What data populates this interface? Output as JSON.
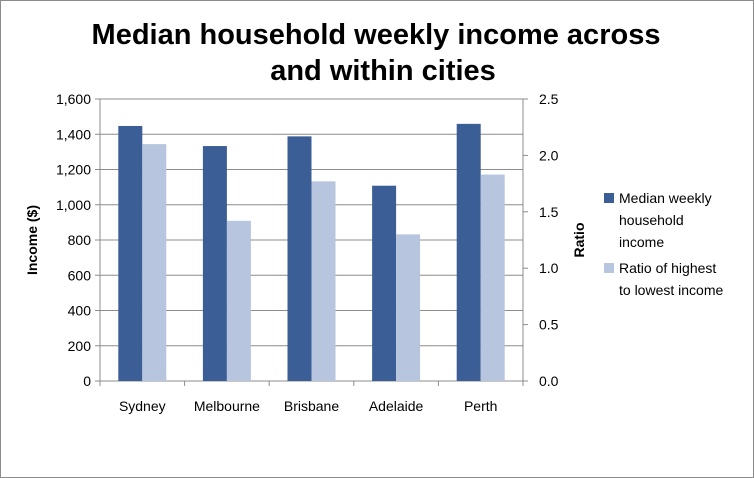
{
  "title_lines": [
    "Median household weekly income across",
    "and within cities"
  ],
  "chart_data": {
    "type": "bar",
    "title": "Median household weekly income across and within cities",
    "categories": [
      "Sydney",
      "Melbourne",
      "Brisbane",
      "Adelaide",
      "Perth"
    ],
    "series": [
      {
        "name": "Median weekly household income",
        "axis": "left",
        "color": "#3b5e96",
        "values": [
          1447,
          1333,
          1388,
          1108,
          1459
        ]
      },
      {
        "name": "Ratio of highest to lowest income",
        "axis": "right",
        "color": "#b7c5de",
        "values": [
          2.1,
          1.42,
          1.77,
          1.3,
          1.83
        ]
      }
    ],
    "y_left": {
      "label": "Income ($)",
      "range": [
        0,
        1600
      ],
      "ticks": [
        "0",
        "200",
        "400",
        "600",
        "800",
        "1,000",
        "1,200",
        "1,400",
        "1,600"
      ]
    },
    "y_right": {
      "label": "Ratio",
      "range": [
        0,
        2.5
      ],
      "ticks": [
        "0.0",
        "0.5",
        "1.0",
        "1.5",
        "2.0",
        "2.5"
      ]
    },
    "legend_position": "right",
    "legend_labels": [
      [
        "Median weekly",
        "household",
        "income"
      ],
      [
        "Ratio of highest",
        "to lowest income"
      ]
    ],
    "grid": true
  }
}
